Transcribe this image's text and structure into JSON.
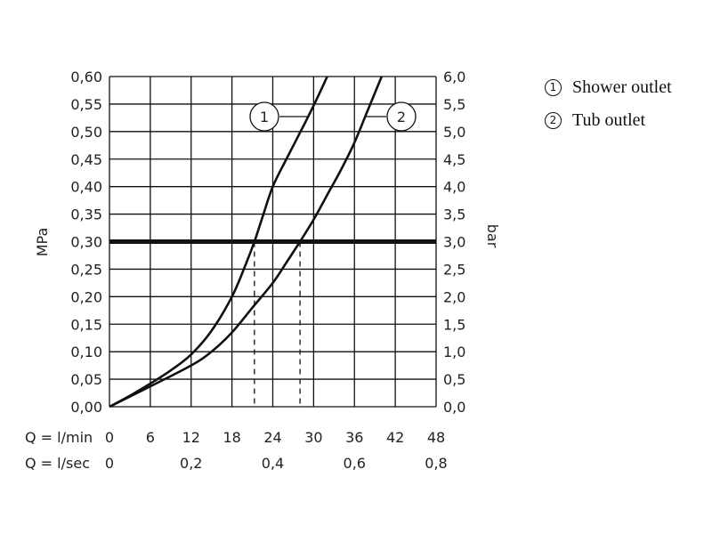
{
  "chart_data": {
    "type": "line",
    "title": "",
    "y_left": {
      "label": "MPa",
      "ticks": [
        "0,00",
        "0,05",
        "0,10",
        "0,15",
        "0,20",
        "0,25",
        "0,30",
        "0,35",
        "0,40",
        "0,45",
        "0,50",
        "0,55",
        "0,60"
      ],
      "range": [
        0,
        0.6
      ]
    },
    "y_right": {
      "label": "bar",
      "ticks": [
        "0,0",
        "0,5",
        "1,0",
        "1,5",
        "2,0",
        "2,5",
        "3,0",
        "3,5",
        "4,0",
        "4,5",
        "5,0",
        "5,5",
        "6,0"
      ],
      "range": [
        0,
        6
      ]
    },
    "x_primary": {
      "label": "Q = l/min",
      "ticks": [
        "0",
        "6",
        "12",
        "18",
        "24",
        "30",
        "36",
        "42",
        "48"
      ],
      "range": [
        0,
        48
      ]
    },
    "x_secondary": {
      "label": "Q = l/sec",
      "ticks": [
        "0",
        "0,2",
        "0,4",
        "0,6",
        "0,8"
      ]
    },
    "grid": true,
    "reference_line": {
      "y": 0.3
    },
    "series": [
      {
        "marker": "1",
        "name": "Shower outlet",
        "points": [
          [
            0,
            0
          ],
          [
            3,
            0.02
          ],
          [
            6,
            0.042
          ],
          [
            9,
            0.066
          ],
          [
            12,
            0.095
          ],
          [
            15,
            0.138
          ],
          [
            18,
            0.2
          ],
          [
            20,
            0.258
          ],
          [
            21.3,
            0.3
          ],
          [
            22.5,
            0.345
          ],
          [
            24,
            0.4
          ],
          [
            26,
            0.45
          ],
          [
            28.5,
            0.51
          ],
          [
            30.5,
            0.56
          ],
          [
            32,
            0.6
          ]
        ],
        "flow_at_reference": 21.3
      },
      {
        "marker": "2",
        "name": "Tub outlet",
        "points": [
          [
            0,
            0
          ],
          [
            6,
            0.037
          ],
          [
            12,
            0.075
          ],
          [
            15,
            0.1
          ],
          [
            18,
            0.135
          ],
          [
            21,
            0.18
          ],
          [
            24,
            0.225
          ],
          [
            26,
            0.262
          ],
          [
            28,
            0.3
          ],
          [
            30,
            0.34
          ],
          [
            32,
            0.385
          ],
          [
            34,
            0.43
          ],
          [
            36,
            0.48
          ],
          [
            38,
            0.54
          ],
          [
            40,
            0.6
          ]
        ],
        "flow_at_reference": 28
      }
    ],
    "legend": {
      "placement": "right"
    }
  }
}
